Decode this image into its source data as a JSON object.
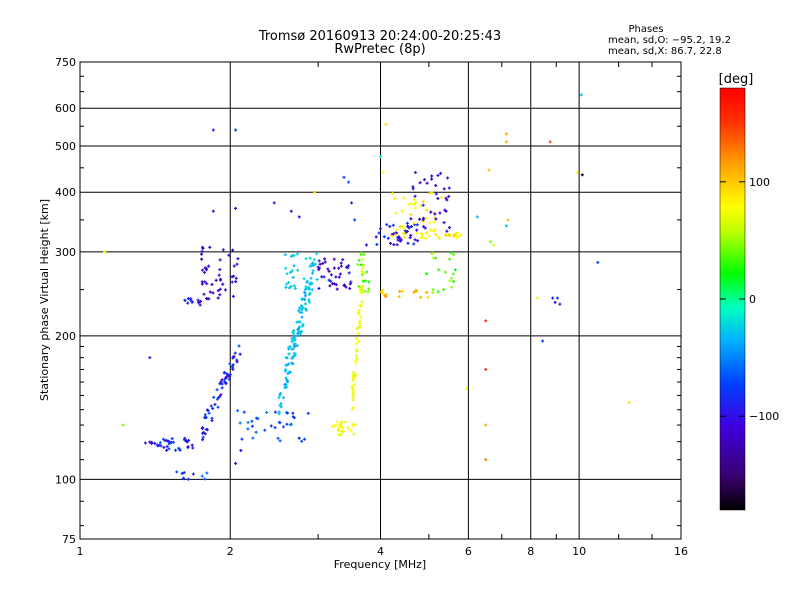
{
  "chart_data": {
    "type": "scatter",
    "title": "Tromsø 20160913 20:24:00-20:25:43",
    "subtitle": "RwPretec (8p)",
    "xlabel": "Frequency [MHz]",
    "ylabel": "Stationary phase Virtual Height [km]",
    "x_scale": "log",
    "y_scale": "log",
    "xlim": [
      1,
      16
    ],
    "ylim": [
      75,
      750
    ],
    "x_ticks": [
      1,
      2,
      4,
      6,
      8,
      10,
      16
    ],
    "x_tick_labels": [
      "1",
      "2",
      "4",
      "6",
      "8",
      "10",
      "16"
    ],
    "y_ticks": [
      75,
      100,
      200,
      300,
      400,
      500,
      600,
      750
    ],
    "y_tick_labels": [
      "75",
      "100",
      "200",
      "300",
      "400",
      "500",
      "600",
      "750"
    ],
    "grid": true,
    "stats": {
      "header": "Phases",
      "line_o": "mean, sd,O: −95.2, 19.2",
      "line_x": "mean, sd,X:  86.7, 22.8"
    },
    "colorbar": {
      "label": "[deg]",
      "range": [
        -180,
        180
      ],
      "ticks": [
        100,
        0,
        -100
      ],
      "tick_labels": [
        "100",
        "0",
        "−100"
      ]
    },
    "clusters": [
      {
        "name": "low-O-trace-left",
        "x_range": [
          1.35,
          1.7
        ],
        "y_range": [
          115,
          122
        ],
        "phase": -110,
        "count": 40
      },
      {
        "name": "low-O-rise-1",
        "x_range": [
          1.75,
          2.1
        ],
        "y_range": [
          118,
          200
        ],
        "phase": -110,
        "count": 60
      },
      {
        "name": "low-O-bump",
        "x_range": [
          1.55,
          1.8
        ],
        "y_range": [
          100,
          104
        ],
        "phase": -95,
        "count": 10
      },
      {
        "name": "F-upper-left",
        "x_range": [
          1.75,
          2.1
        ],
        "y_range": [
          235,
          310
        ],
        "phase": -125,
        "count": 45
      },
      {
        "name": "F-shelf-left",
        "x_range": [
          1.6,
          1.8
        ],
        "y_range": [
          232,
          240
        ],
        "phase": -115,
        "count": 15
      },
      {
        "name": "O-trace-mid",
        "x_range": [
          2.05,
          2.9
        ],
        "y_range": [
          120,
          140
        ],
        "phase": -95,
        "count": 35
      },
      {
        "name": "O-trace-rise",
        "x_range": [
          2.5,
          2.95
        ],
        "y_range": [
          135,
          300
        ],
        "phase": -60,
        "count": 120
      },
      {
        "name": "O-trace-top",
        "x_range": [
          2.55,
          3.0
        ],
        "y_range": [
          250,
          300
        ],
        "phase": -50,
        "count": 30
      },
      {
        "name": "F-upper-mid",
        "x_range": [
          3.0,
          3.5
        ],
        "y_range": [
          250,
          290
        ],
        "phase": -120,
        "count": 40
      },
      {
        "name": "X-trace-low",
        "x_range": [
          3.2,
          3.6
        ],
        "y_range": [
          124,
          132
        ],
        "phase": 95,
        "count": 25
      },
      {
        "name": "X-trace-rise",
        "x_range": [
          3.5,
          3.7
        ],
        "y_range": [
          132,
          300
        ],
        "phase": 90,
        "count": 60
      },
      {
        "name": "X-trace-green",
        "x_range": [
          3.6,
          3.8
        ],
        "y_range": [
          240,
          300
        ],
        "phase": 35,
        "count": 15
      },
      {
        "name": "upper-blue-4",
        "x_range": [
          3.9,
          4.8
        ],
        "y_range": [
          310,
          345
        ],
        "phase": -115,
        "count": 40
      },
      {
        "name": "upper-yellow-4",
        "x_range": [
          4.2,
          5.3
        ],
        "y_range": [
          320,
          400
        ],
        "phase": 100,
        "count": 50
      },
      {
        "name": "upper-purple-5",
        "x_range": [
          4.6,
          5.5
        ],
        "y_range": [
          330,
          440
        ],
        "phase": -125,
        "count": 35
      },
      {
        "name": "mid-orange-4",
        "x_range": [
          4.0,
          5.0
        ],
        "y_range": [
          240,
          250
        ],
        "phase": 125,
        "count": 15
      },
      {
        "name": "mid-scatter-5",
        "x_range": [
          5.0,
          5.7
        ],
        "y_range": [
          240,
          300
        ],
        "phase": 40,
        "count": 15
      },
      {
        "name": "upper-yellow-5",
        "x_range": [
          5.2,
          5.8
        ],
        "y_range": [
          320,
          330
        ],
        "phase": 100,
        "count": 15
      }
    ],
    "points": [
      {
        "x": 1.12,
        "y": 300,
        "phase": 100
      },
      {
        "x": 1.22,
        "y": 130,
        "phase": 40
      },
      {
        "x": 1.38,
        "y": 180,
        "phase": -110
      },
      {
        "x": 1.85,
        "y": 540,
        "phase": -110
      },
      {
        "x": 2.05,
        "y": 540,
        "phase": -100
      },
      {
        "x": 1.85,
        "y": 365,
        "phase": -120
      },
      {
        "x": 2.05,
        "y": 370,
        "phase": -120
      },
      {
        "x": 2.1,
        "y": 115,
        "phase": -120
      },
      {
        "x": 2.05,
        "y": 108,
        "phase": -120
      },
      {
        "x": 2.45,
        "y": 380,
        "phase": -110
      },
      {
        "x": 2.65,
        "y": 365,
        "phase": -125
      },
      {
        "x": 2.75,
        "y": 355,
        "phase": -120
      },
      {
        "x": 2.95,
        "y": 400,
        "phase": 120
      },
      {
        "x": 3.38,
        "y": 430,
        "phase": -100
      },
      {
        "x": 3.45,
        "y": 420,
        "phase": -90
      },
      {
        "x": 3.5,
        "y": 380,
        "phase": -110
      },
      {
        "x": 3.55,
        "y": 350,
        "phase": -100
      },
      {
        "x": 3.75,
        "y": 310,
        "phase": -120
      },
      {
        "x": 4.0,
        "y": 475,
        "phase": -30
      },
      {
        "x": 4.1,
        "y": 555,
        "phase": 110
      },
      {
        "x": 4.05,
        "y": 440,
        "phase": 100
      },
      {
        "x": 4.95,
        "y": 270,
        "phase": 20
      },
      {
        "x": 5.1,
        "y": 250,
        "phase": 40
      },
      {
        "x": 5.35,
        "y": 250,
        "phase": 30
      },
      {
        "x": 5.6,
        "y": 260,
        "phase": 25
      },
      {
        "x": 5.65,
        "y": 275,
        "phase": 20
      },
      {
        "x": 6.25,
        "y": 355,
        "phase": -60
      },
      {
        "x": 6.5,
        "y": 215,
        "phase": 160
      },
      {
        "x": 6.5,
        "y": 170,
        "phase": 160
      },
      {
        "x": 6.5,
        "y": 130,
        "phase": 130
      },
      {
        "x": 6.5,
        "y": 110,
        "phase": 140
      },
      {
        "x": 6.6,
        "y": 445,
        "phase": 120
      },
      {
        "x": 6.65,
        "y": 315,
        "phase": 40
      },
      {
        "x": 6.75,
        "y": 310,
        "phase": 60
      },
      {
        "x": 7.15,
        "y": 530,
        "phase": 130
      },
      {
        "x": 7.15,
        "y": 510,
        "phase": 125
      },
      {
        "x": 7.2,
        "y": 350,
        "phase": 120
      },
      {
        "x": 7.15,
        "y": 340,
        "phase": -60
      },
      {
        "x": 5.95,
        "y": 155,
        "phase": 90
      },
      {
        "x": 8.25,
        "y": 240,
        "phase": 90
      },
      {
        "x": 8.45,
        "y": 195,
        "phase": -100
      },
      {
        "x": 8.75,
        "y": 510,
        "phase": 150
      },
      {
        "x": 8.85,
        "y": 240,
        "phase": -110
      },
      {
        "x": 8.95,
        "y": 235,
        "phase": -120
      },
      {
        "x": 9.05,
        "y": 240,
        "phase": -100
      },
      {
        "x": 9.15,
        "y": 233,
        "phase": -110
      },
      {
        "x": 9.9,
        "y": 440,
        "phase": 100
      },
      {
        "x": 10.15,
        "y": 435,
        "phase": -175
      },
      {
        "x": 10.1,
        "y": 640,
        "phase": -60
      },
      {
        "x": 10.9,
        "y": 285,
        "phase": -100
      },
      {
        "x": 12.6,
        "y": 145,
        "phase": 110
      },
      {
        "x": 4.7,
        "y": 440,
        "phase": -110
      },
      {
        "x": 4.9,
        "y": 425,
        "phase": -125
      }
    ]
  }
}
